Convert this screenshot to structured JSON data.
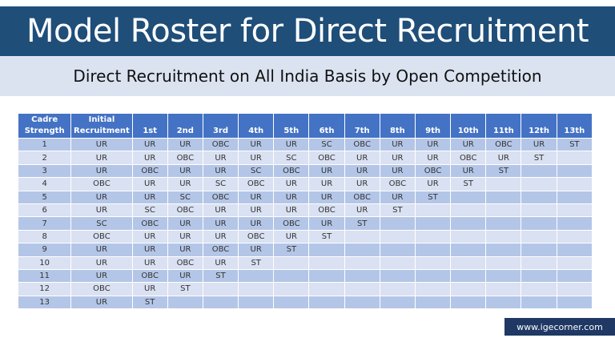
{
  "header": {
    "title": "Model Roster for Direct Recruitment",
    "subtitle": "Direct Recruitment on All India Basis by Open Competition"
  },
  "colors": {
    "title_bg": "#1f4e79",
    "subtitle_bg": "#dbe3f1",
    "table_header_bg": "#4472c4",
    "row_odd_bg": "#b4c6e7",
    "row_even_bg": "#d9e1f2",
    "watermark_bg": "#1f3864"
  },
  "table": {
    "columns": [
      {
        "line1": "Cadre",
        "line2": "Strength"
      },
      {
        "line1": "Initial",
        "line2": "Recruitment"
      },
      {
        "line1": "",
        "line2": "1st"
      },
      {
        "line1": "",
        "line2": "2nd"
      },
      {
        "line1": "",
        "line2": "3rd"
      },
      {
        "line1": "",
        "line2": "4th"
      },
      {
        "line1": "",
        "line2": "5th"
      },
      {
        "line1": "",
        "line2": "6th"
      },
      {
        "line1": "",
        "line2": "7th"
      },
      {
        "line1": "",
        "line2": "8th"
      },
      {
        "line1": "",
        "line2": "9th"
      },
      {
        "line1": "",
        "line2": "10th"
      },
      {
        "line1": "",
        "line2": "11th"
      },
      {
        "line1": "",
        "line2": "12th"
      },
      {
        "line1": "",
        "line2": "13th"
      }
    ],
    "rows": [
      [
        "1",
        "UR",
        "UR",
        "UR",
        "OBC",
        "UR",
        "UR",
        "SC",
        "OBC",
        "UR",
        "UR",
        "UR",
        "OBC",
        "UR",
        "ST"
      ],
      [
        "2",
        "UR",
        "UR",
        "OBC",
        "UR",
        "UR",
        "SC",
        "OBC",
        "UR",
        "UR",
        "UR",
        "OBC",
        "UR",
        "ST",
        ""
      ],
      [
        "3",
        "UR",
        "OBC",
        "UR",
        "UR",
        "SC",
        "OBC",
        "UR",
        "UR",
        "UR",
        "OBC",
        "UR",
        "ST",
        "",
        ""
      ],
      [
        "4",
        "OBC",
        "UR",
        "UR",
        "SC",
        "OBC",
        "UR",
        "UR",
        "UR",
        "OBC",
        "UR",
        "ST",
        "",
        "",
        ""
      ],
      [
        "5",
        "UR",
        "UR",
        "SC",
        "OBC",
        "UR",
        "UR",
        "UR",
        "OBC",
        "UR",
        "ST",
        "",
        "",
        "",
        ""
      ],
      [
        "6",
        "UR",
        "SC",
        "OBC",
        "UR",
        "UR",
        "UR",
        "OBC",
        "UR",
        "ST",
        "",
        "",
        "",
        "",
        ""
      ],
      [
        "7",
        "SC",
        "OBC",
        "UR",
        "UR",
        "UR",
        "OBC",
        "UR",
        "ST",
        "",
        "",
        "",
        "",
        "",
        ""
      ],
      [
        "8",
        "OBC",
        "UR",
        "UR",
        "UR",
        "OBC",
        "UR",
        "ST",
        "",
        "",
        "",
        "",
        "",
        "",
        ""
      ],
      [
        "9",
        "UR",
        "UR",
        "UR",
        "OBC",
        "UR",
        "ST",
        "",
        "",
        "",
        "",
        "",
        "",
        "",
        ""
      ],
      [
        "10",
        "UR",
        "UR",
        "OBC",
        "UR",
        "ST",
        "",
        "",
        "",
        "",
        "",
        "",
        "",
        "",
        ""
      ],
      [
        "11",
        "UR",
        "OBC",
        "UR",
        "ST",
        "",
        "",
        "",
        "",
        "",
        "",
        "",
        "",
        "",
        ""
      ],
      [
        "12",
        "OBC",
        "UR",
        "ST",
        "",
        "",
        "",
        "",
        "",
        "",
        "",
        "",
        "",
        "",
        ""
      ],
      [
        "13",
        "UR",
        "ST",
        "",
        "",
        "",
        "",
        "",
        "",
        "",
        "",
        "",
        "",
        "",
        ""
      ]
    ]
  },
  "footer": {
    "watermark": "www.igecorner.com"
  }
}
